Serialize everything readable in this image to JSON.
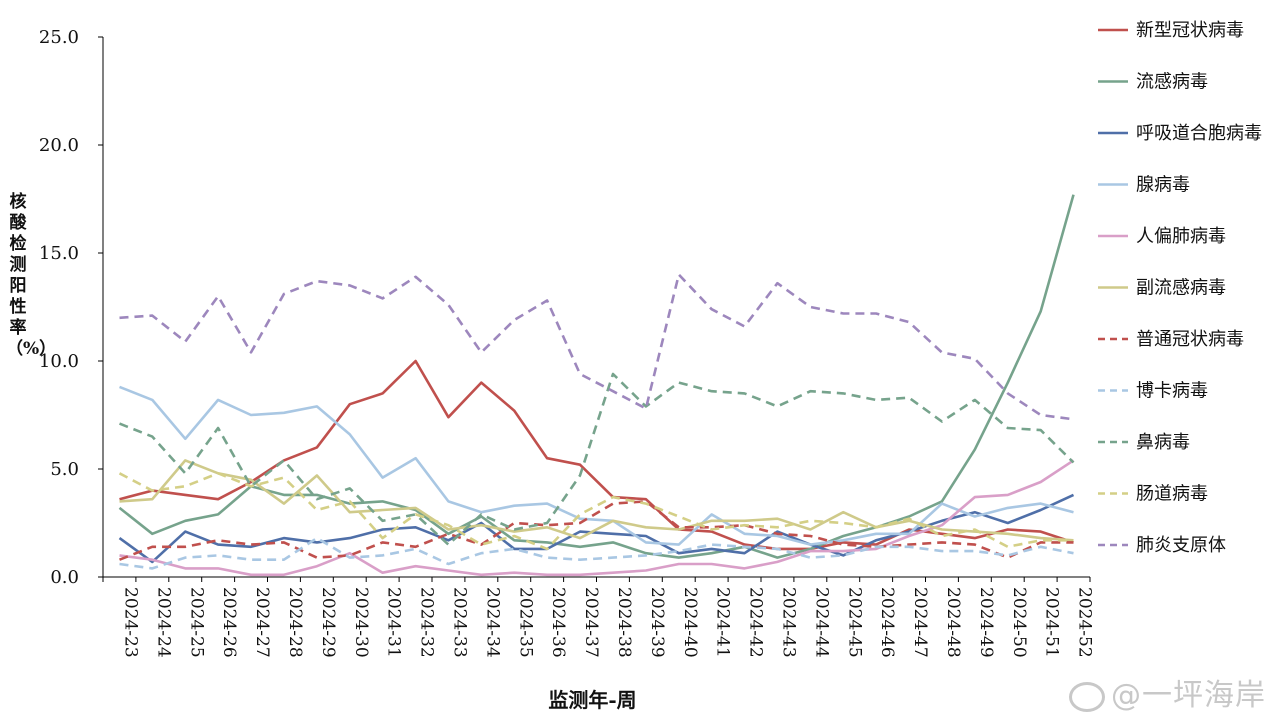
{
  "chart_data": {
    "type": "line",
    "title": "",
    "xlabel": "监测年-周",
    "ylabel": "核酸检测阳性率（%）",
    "ylim": [
      0,
      25
    ],
    "yticks": [
      "0.0",
      "5.0",
      "10.0",
      "15.0",
      "20.0",
      "25.0"
    ],
    "legend_position": "right",
    "categories": [
      "2024-23",
      "2024-24",
      "2024-25",
      "2024-26",
      "2024-27",
      "2024-28",
      "2024-29",
      "2024-30",
      "2024-31",
      "2024-32",
      "2024-33",
      "2024-34",
      "2024-35",
      "2024-36",
      "2024-37",
      "2024-38",
      "2024-39",
      "2024-40",
      "2024-41",
      "2024-42",
      "2024-43",
      "2024-44",
      "2024-45",
      "2024-46",
      "2024-47",
      "2024-48",
      "2024-49",
      "2024-50",
      "2024-51",
      "2024-52"
    ],
    "series": [
      {
        "name": "新型冠状病毒",
        "color": "#c0504d",
        "dash": false,
        "values": [
          3.6,
          4.0,
          3.8,
          3.6,
          4.4,
          5.4,
          6.0,
          8.0,
          8.5,
          10.0,
          7.4,
          9.0,
          7.7,
          5.5,
          5.2,
          3.7,
          3.6,
          2.2,
          2.1,
          1.5,
          1.3,
          1.3,
          1.6,
          1.5,
          2.2,
          2.0,
          1.8,
          2.2,
          2.1,
          1.6
        ]
      },
      {
        "name": "流感病毒",
        "color": "#76a38c",
        "dash": false,
        "values": [
          3.2,
          2.0,
          2.6,
          2.9,
          4.2,
          3.8,
          3.8,
          3.4,
          3.5,
          3.1,
          2.0,
          2.8,
          1.7,
          1.6,
          1.4,
          1.6,
          1.1,
          0.9,
          1.1,
          1.4,
          0.9,
          1.3,
          1.9,
          2.3,
          2.8,
          3.5,
          5.9,
          9.0,
          12.3,
          17.7
        ]
      },
      {
        "name": "呼吸道合胞病毒",
        "color": "#4f6fa8",
        "dash": false,
        "values": [
          1.8,
          0.7,
          2.1,
          1.5,
          1.4,
          1.8,
          1.6,
          1.8,
          2.2,
          2.3,
          1.7,
          2.5,
          1.3,
          1.3,
          2.1,
          2.0,
          1.9,
          1.1,
          1.3,
          1.1,
          2.1,
          1.5,
          1.0,
          1.7,
          2.1,
          2.6,
          3.0,
          2.5,
          3.1,
          3.8
        ]
      },
      {
        "name": "腺病毒",
        "color": "#a9c7e3",
        "dash": false,
        "values": [
          8.8,
          8.2,
          6.4,
          8.2,
          7.5,
          7.6,
          7.9,
          6.6,
          4.6,
          5.5,
          3.5,
          3.0,
          3.3,
          3.4,
          2.7,
          2.6,
          1.6,
          1.5,
          2.9,
          2.0,
          1.9,
          1.5,
          1.7,
          2.0,
          2.0,
          3.4,
          2.8,
          3.2,
          3.4,
          3.0
        ]
      },
      {
        "name": "人偏肺病毒",
        "color": "#d99fc8",
        "dash": false,
        "values": [
          1.0,
          0.8,
          0.4,
          0.4,
          0.1,
          0.1,
          0.5,
          1.1,
          0.2,
          0.5,
          0.3,
          0.1,
          0.2,
          0.1,
          0.1,
          0.2,
          0.3,
          0.6,
          0.6,
          0.4,
          0.7,
          1.2,
          1.2,
          1.3,
          1.9,
          2.4,
          3.7,
          3.8,
          4.4,
          5.4
        ]
      },
      {
        "name": "副流感病毒",
        "color": "#cfca8a",
        "dash": false,
        "values": [
          3.5,
          3.6,
          5.4,
          4.8,
          4.5,
          3.4,
          4.7,
          3.0,
          3.1,
          3.2,
          2.2,
          2.4,
          2.1,
          2.3,
          1.8,
          2.6,
          2.3,
          2.2,
          2.6,
          2.6,
          2.7,
          2.2,
          3.0,
          2.3,
          2.6,
          2.2,
          2.1,
          2.0,
          1.8,
          1.7
        ]
      },
      {
        "name": "普通冠状病毒",
        "color": "#c0504d",
        "dash": true,
        "values": [
          0.8,
          1.4,
          1.4,
          1.7,
          1.5,
          1.6,
          0.9,
          1.0,
          1.6,
          1.4,
          2.0,
          1.5,
          2.5,
          2.4,
          2.5,
          3.4,
          3.5,
          2.3,
          2.3,
          2.4,
          2.0,
          1.9,
          1.5,
          1.4,
          1.5,
          1.6,
          1.5,
          0.9,
          1.6,
          1.6
        ]
      },
      {
        "name": "博卡病毒",
        "color": "#a9c7e3",
        "dash": true,
        "values": [
          0.6,
          0.4,
          0.9,
          1.0,
          0.8,
          0.8,
          1.8,
          0.9,
          1.0,
          1.3,
          0.6,
          1.1,
          1.3,
          0.9,
          0.8,
          0.9,
          1.0,
          1.2,
          1.5,
          1.4,
          1.3,
          0.9,
          1.0,
          1.4,
          1.4,
          1.2,
          1.2,
          1.0,
          1.4,
          1.1
        ]
      },
      {
        "name": "鼻病毒",
        "color": "#76a38c",
        "dash": true,
        "values": [
          7.1,
          6.5,
          4.8,
          6.9,
          4.2,
          5.4,
          3.6,
          4.1,
          2.6,
          2.9,
          1.5,
          2.9,
          2.2,
          2.5,
          4.7,
          9.4,
          7.9,
          9.0,
          8.6,
          8.5,
          7.9,
          8.6,
          8.5,
          8.2,
          8.3,
          7.2,
          8.2,
          6.9,
          6.8,
          5.3
        ]
      },
      {
        "name": "肠道病毒",
        "color": "#d4cf86",
        "dash": true,
        "values": [
          4.8,
          4.0,
          4.2,
          4.8,
          4.2,
          4.6,
          3.1,
          3.5,
          1.8,
          2.9,
          2.4,
          1.5,
          1.9,
          1.3,
          2.9,
          3.7,
          3.4,
          2.8,
          2.2,
          2.4,
          2.3,
          2.6,
          2.5,
          2.3,
          2.7,
          1.9,
          2.2,
          1.4,
          1.7,
          1.7
        ]
      },
      {
        "name": "肺炎支原体",
        "color": "#9d87bd",
        "dash": true,
        "values": [
          12.0,
          12.1,
          10.9,
          13.0,
          10.4,
          13.1,
          13.7,
          13.5,
          12.9,
          13.9,
          12.6,
          10.4,
          11.9,
          12.8,
          9.4,
          8.6,
          7.8,
          14.0,
          12.4,
          11.6,
          13.6,
          12.5,
          12.2,
          12.2,
          11.8,
          10.4,
          10.1,
          8.5,
          7.5,
          7.3
        ]
      }
    ]
  },
  "watermark": "@一坪海岸"
}
